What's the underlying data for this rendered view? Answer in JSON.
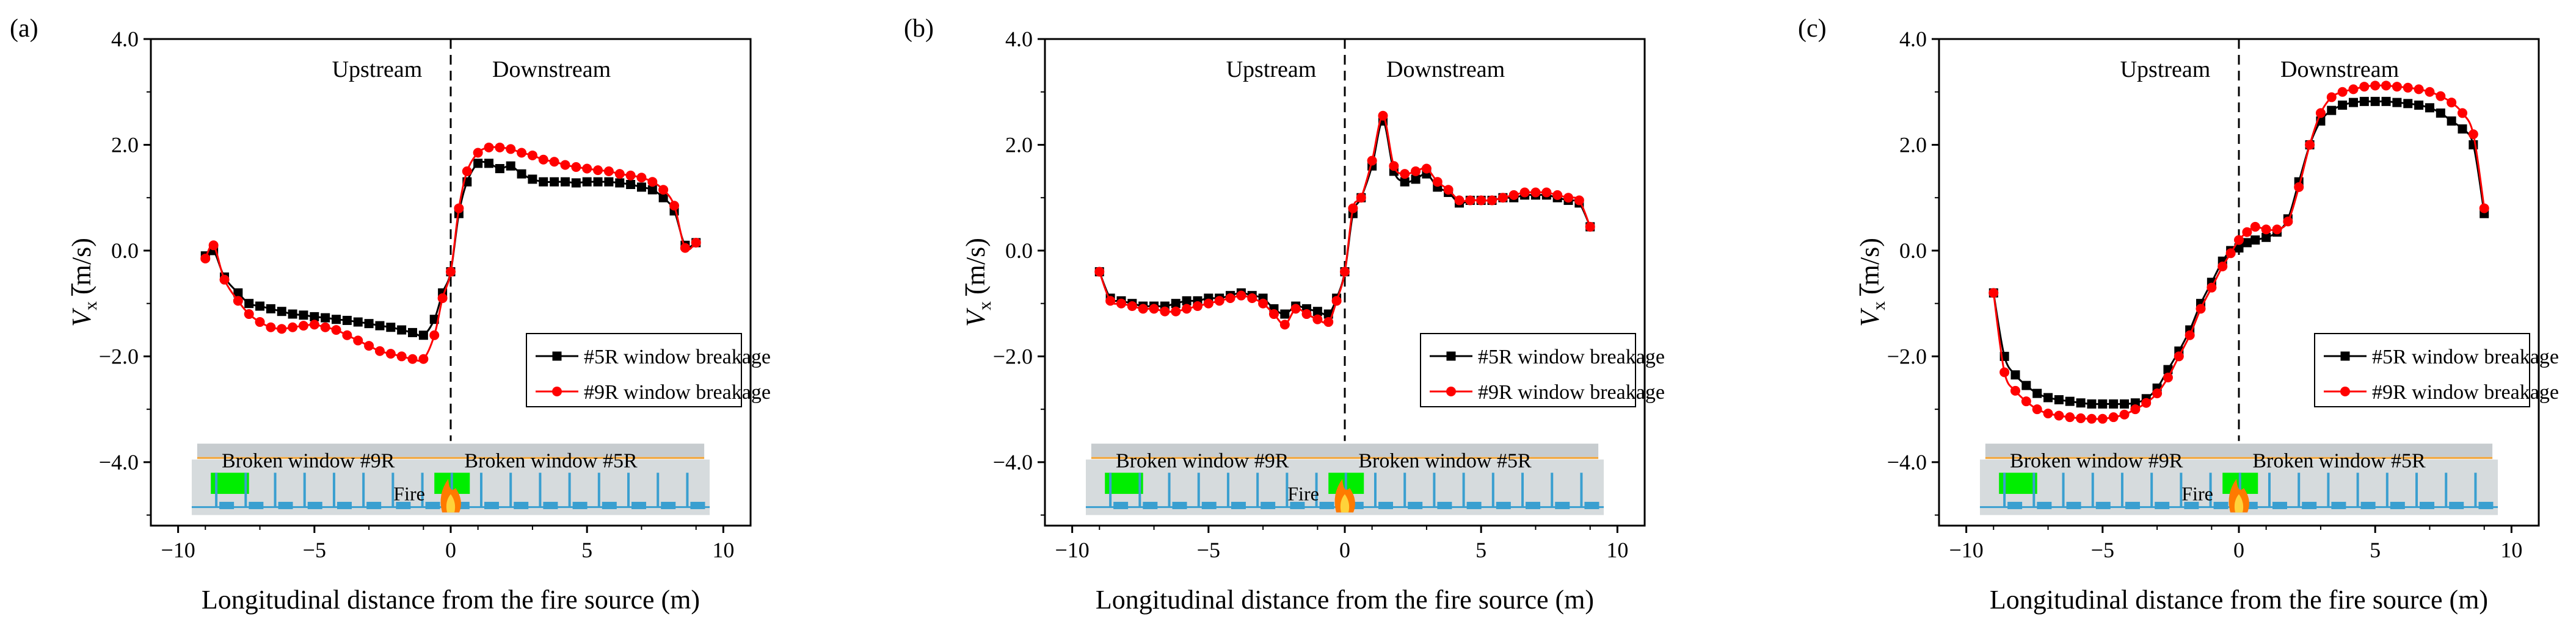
{
  "colors": {
    "series_5R": "#000000",
    "series_9R": "#ff0000",
    "tunnel_fill": "#d6dbdd",
    "tunnel_top": "#c7cccf",
    "orange_line": "#f0a030",
    "window_green": "#00ee00",
    "vent_blue": "#3a9fd0",
    "fire": "#ff7a00"
  },
  "chart_data": [
    {
      "type": "line",
      "panel_label": "(a)",
      "xlabel": "Longitudinal distance from the fire source (m)",
      "ylabel_main": "V",
      "ylabel_sub": "x",
      "ylabel_unit": " (m/s)",
      "xlim": [
        -11,
        11
      ],
      "ylim": [
        -5.2,
        4.0
      ],
      "xticks": [
        -10,
        -5,
        0,
        5,
        10
      ],
      "xtick_labels": [
        "−10",
        "−5",
        "0",
        "5",
        "10"
      ],
      "yticks": [
        -4,
        -2,
        0,
        2,
        4
      ],
      "ytick_labels": [
        "−4.0",
        "−2.0",
        "0.0",
        "2.0",
        "4.0"
      ],
      "annotations": [
        "Upstream",
        "Downstream"
      ],
      "schematic_labels": {
        "left_window": "Broken window #9R",
        "right_window": "Broken window #5R",
        "fire": "Fire"
      },
      "legend_position": "right-middle",
      "series": [
        {
          "name": "#5R window breakage",
          "color": "#000000",
          "marker": "square",
          "x": [
            -9.0,
            -8.7,
            -8.3,
            -7.8,
            -7.4,
            -7.0,
            -6.6,
            -6.2,
            -5.8,
            -5.4,
            -5.0,
            -4.6,
            -4.2,
            -3.8,
            -3.4,
            -3.0,
            -2.6,
            -2.2,
            -1.8,
            -1.4,
            -1.0,
            -0.6,
            -0.3,
            0.0,
            0.3,
            0.6,
            1.0,
            1.4,
            1.8,
            2.2,
            2.6,
            3.0,
            3.4,
            3.8,
            4.2,
            4.6,
            5.0,
            5.4,
            5.8,
            6.2,
            6.6,
            7.0,
            7.4,
            7.8,
            8.2,
            8.6,
            9.0
          ],
          "y": [
            -0.1,
            0.0,
            -0.5,
            -0.8,
            -1.0,
            -1.05,
            -1.1,
            -1.15,
            -1.2,
            -1.22,
            -1.25,
            -1.27,
            -1.3,
            -1.32,
            -1.35,
            -1.38,
            -1.42,
            -1.45,
            -1.5,
            -1.55,
            -1.6,
            -1.3,
            -0.8,
            -0.4,
            0.7,
            1.3,
            1.65,
            1.65,
            1.55,
            1.6,
            1.45,
            1.35,
            1.3,
            1.3,
            1.3,
            1.28,
            1.3,
            1.3,
            1.3,
            1.28,
            1.25,
            1.2,
            1.15,
            1.0,
            0.75,
            0.1,
            0.15
          ]
        },
        {
          "name": "#9R window breakage",
          "color": "#ff0000",
          "marker": "circle",
          "x": [
            -9.0,
            -8.7,
            -8.3,
            -7.8,
            -7.4,
            -7.0,
            -6.6,
            -6.2,
            -5.8,
            -5.4,
            -5.0,
            -4.6,
            -4.2,
            -3.8,
            -3.4,
            -3.0,
            -2.6,
            -2.2,
            -1.8,
            -1.4,
            -1.0,
            -0.6,
            -0.3,
            0.0,
            0.3,
            0.6,
            1.0,
            1.4,
            1.8,
            2.2,
            2.6,
            3.0,
            3.4,
            3.8,
            4.2,
            4.6,
            5.0,
            5.4,
            5.8,
            6.2,
            6.6,
            7.0,
            7.4,
            7.8,
            8.2,
            8.6,
            9.0
          ],
          "y": [
            -0.15,
            0.1,
            -0.55,
            -0.95,
            -1.2,
            -1.35,
            -1.45,
            -1.48,
            -1.45,
            -1.42,
            -1.4,
            -1.45,
            -1.5,
            -1.6,
            -1.7,
            -1.8,
            -1.9,
            -1.95,
            -2.0,
            -2.05,
            -2.05,
            -1.6,
            -0.9,
            -0.4,
            0.8,
            1.5,
            1.85,
            1.95,
            1.95,
            1.92,
            1.85,
            1.8,
            1.72,
            1.68,
            1.62,
            1.58,
            1.55,
            1.52,
            1.5,
            1.45,
            1.42,
            1.38,
            1.3,
            1.15,
            0.85,
            0.05,
            0.15
          ]
        }
      ]
    },
    {
      "type": "line",
      "panel_label": "(b)",
      "xlabel": "Longitudinal distance from the fire source (m)",
      "ylabel_main": "V",
      "ylabel_sub": "x",
      "ylabel_unit": " (m/s)",
      "xlim": [
        -11,
        11
      ],
      "ylim": [
        -5.2,
        4.0
      ],
      "xticks": [
        -10,
        -5,
        0,
        5,
        10
      ],
      "xtick_labels": [
        "−10",
        "−5",
        "0",
        "5",
        "10"
      ],
      "yticks": [
        -4,
        -2,
        0,
        2,
        4
      ],
      "ytick_labels": [
        "−4.0",
        "−2.0",
        "0.0",
        "2.0",
        "4.0"
      ],
      "annotations": [
        "Upstream",
        "Downstream"
      ],
      "schematic_labels": {
        "left_window": "Broken window #9R",
        "right_window": "Broken window #5R",
        "fire": "Fire"
      },
      "legend_position": "right-middle",
      "series": [
        {
          "name": "#5R window breakage",
          "color": "#000000",
          "marker": "square",
          "x": [
            -9.0,
            -8.6,
            -8.2,
            -7.8,
            -7.4,
            -7.0,
            -6.6,
            -6.2,
            -5.8,
            -5.4,
            -5.0,
            -4.6,
            -4.2,
            -3.8,
            -3.4,
            -3.0,
            -2.6,
            -2.2,
            -1.8,
            -1.4,
            -1.0,
            -0.6,
            -0.3,
            0.0,
            0.3,
            0.6,
            1.0,
            1.4,
            1.8,
            2.2,
            2.6,
            3.0,
            3.4,
            3.8,
            4.2,
            4.6,
            5.0,
            5.4,
            5.8,
            6.2,
            6.6,
            7.0,
            7.4,
            7.8,
            8.2,
            8.6,
            9.0
          ],
          "y": [
            -0.4,
            -0.9,
            -0.95,
            -1.0,
            -1.05,
            -1.05,
            -1.05,
            -1.0,
            -0.95,
            -0.95,
            -0.9,
            -0.9,
            -0.85,
            -0.8,
            -0.85,
            -0.9,
            -1.1,
            -1.2,
            -1.05,
            -1.1,
            -1.15,
            -1.2,
            -0.9,
            -0.4,
            0.7,
            1.0,
            1.6,
            2.45,
            1.5,
            1.3,
            1.35,
            1.45,
            1.2,
            1.1,
            0.9,
            0.95,
            0.95,
            0.95,
            1.0,
            1.0,
            1.05,
            1.05,
            1.05,
            1.0,
            0.95,
            0.9,
            0.45
          ]
        },
        {
          "name": "#9R window breakage",
          "color": "#ff0000",
          "marker": "circle",
          "x": [
            -9.0,
            -8.6,
            -8.2,
            -7.8,
            -7.4,
            -7.0,
            -6.6,
            -6.2,
            -5.8,
            -5.4,
            -5.0,
            -4.6,
            -4.2,
            -3.8,
            -3.4,
            -3.0,
            -2.6,
            -2.2,
            -1.8,
            -1.4,
            -1.0,
            -0.6,
            -0.3,
            0.0,
            0.3,
            0.6,
            1.0,
            1.4,
            1.8,
            2.2,
            2.6,
            3.0,
            3.4,
            3.8,
            4.2,
            4.6,
            5.0,
            5.4,
            5.8,
            6.2,
            6.6,
            7.0,
            7.4,
            7.8,
            8.2,
            8.6,
            9.0
          ],
          "y": [
            -0.4,
            -0.95,
            -1.0,
            -1.05,
            -1.1,
            -1.1,
            -1.15,
            -1.15,
            -1.1,
            -1.05,
            -1.0,
            -0.95,
            -0.9,
            -0.85,
            -0.9,
            -1.0,
            -1.2,
            -1.4,
            -1.1,
            -1.2,
            -1.3,
            -1.35,
            -0.95,
            -0.4,
            0.8,
            1.0,
            1.7,
            2.55,
            1.6,
            1.45,
            1.5,
            1.55,
            1.3,
            1.15,
            0.95,
            0.95,
            0.95,
            0.95,
            1.0,
            1.05,
            1.1,
            1.1,
            1.1,
            1.05,
            1.0,
            0.95,
            0.45
          ]
        }
      ]
    },
    {
      "type": "line",
      "panel_label": "(c)",
      "xlabel": "Longitudinal distance from the fire source (m)",
      "ylabel_main": "V",
      "ylabel_sub": "x",
      "ylabel_unit": " (m/s)",
      "xlim": [
        -11,
        11
      ],
      "ylim": [
        -5.2,
        4.0
      ],
      "xticks": [
        -10,
        -5,
        0,
        5,
        10
      ],
      "xtick_labels": [
        "−10",
        "−5",
        "0",
        "5",
        "10"
      ],
      "yticks": [
        -4,
        -2,
        0,
        2,
        4
      ],
      "ytick_labels": [
        "−4.0",
        "−2.0",
        "0.0",
        "2.0",
        "4.0"
      ],
      "annotations": [
        "Upstream",
        "Downstream"
      ],
      "schematic_labels": {
        "left_window": "Broken window #9R",
        "right_window": "Broken window #5R",
        "fire": "Fire"
      },
      "legend_position": "right-middle",
      "series": [
        {
          "name": "#5R window breakage",
          "color": "#000000",
          "marker": "square",
          "x": [
            -9.0,
            -8.6,
            -8.2,
            -7.8,
            -7.4,
            -7.0,
            -6.6,
            -6.2,
            -5.8,
            -5.4,
            -5.0,
            -4.6,
            -4.2,
            -3.8,
            -3.4,
            -3.0,
            -2.6,
            -2.2,
            -1.8,
            -1.4,
            -1.0,
            -0.6,
            -0.3,
            0.0,
            0.3,
            0.6,
            1.0,
            1.4,
            1.8,
            2.2,
            2.6,
            3.0,
            3.4,
            3.8,
            4.2,
            4.6,
            5.0,
            5.4,
            5.8,
            6.2,
            6.6,
            7.0,
            7.4,
            7.8,
            8.2,
            8.6,
            9.0
          ],
          "y": [
            -0.8,
            -2.0,
            -2.35,
            -2.55,
            -2.7,
            -2.78,
            -2.82,
            -2.85,
            -2.88,
            -2.9,
            -2.9,
            -2.9,
            -2.9,
            -2.88,
            -2.8,
            -2.6,
            -2.25,
            -1.9,
            -1.5,
            -1.0,
            -0.6,
            -0.2,
            0.0,
            0.05,
            0.15,
            0.2,
            0.25,
            0.35,
            0.6,
            1.3,
            2.0,
            2.45,
            2.65,
            2.75,
            2.8,
            2.82,
            2.82,
            2.82,
            2.8,
            2.78,
            2.75,
            2.7,
            2.6,
            2.45,
            2.3,
            2.0,
            0.7
          ]
        },
        {
          "name": "#9R window breakage",
          "color": "#ff0000",
          "marker": "circle",
          "x": [
            -9.0,
            -8.6,
            -8.2,
            -7.8,
            -7.4,
            -7.0,
            -6.6,
            -6.2,
            -5.8,
            -5.4,
            -5.0,
            -4.6,
            -4.2,
            -3.8,
            -3.4,
            -3.0,
            -2.6,
            -2.2,
            -1.8,
            -1.4,
            -1.0,
            -0.6,
            -0.3,
            0.0,
            0.3,
            0.6,
            1.0,
            1.4,
            1.8,
            2.2,
            2.6,
            3.0,
            3.4,
            3.8,
            4.2,
            4.6,
            5.0,
            5.4,
            5.8,
            6.2,
            6.6,
            7.0,
            7.4,
            7.8,
            8.2,
            8.6,
            9.0
          ],
          "y": [
            -0.8,
            -2.3,
            -2.65,
            -2.85,
            -3.0,
            -3.08,
            -3.12,
            -3.15,
            -3.17,
            -3.18,
            -3.18,
            -3.15,
            -3.1,
            -3.0,
            -2.88,
            -2.7,
            -2.4,
            -2.0,
            -1.6,
            -1.1,
            -0.7,
            -0.3,
            -0.05,
            0.2,
            0.35,
            0.45,
            0.4,
            0.4,
            0.55,
            1.2,
            2.0,
            2.6,
            2.9,
            3.0,
            3.05,
            3.1,
            3.12,
            3.12,
            3.1,
            3.08,
            3.05,
            3.0,
            2.92,
            2.8,
            2.6,
            2.2,
            0.8
          ]
        }
      ]
    }
  ]
}
